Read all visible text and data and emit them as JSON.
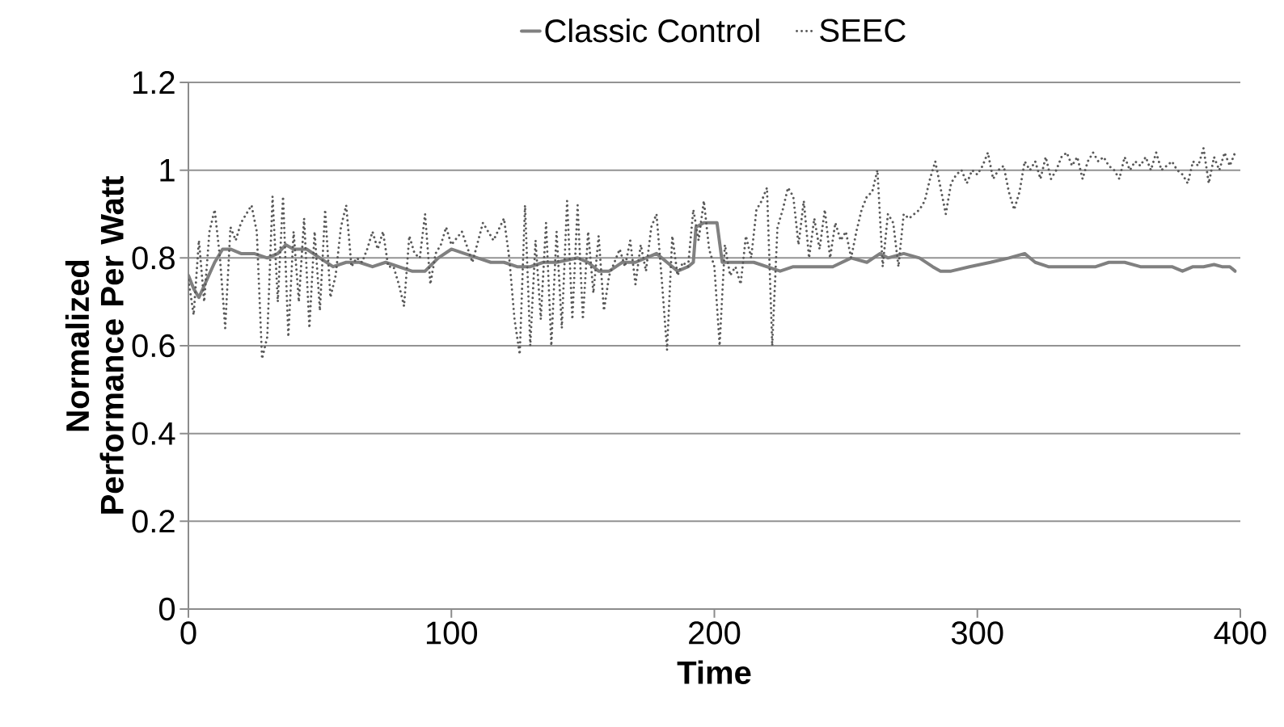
{
  "chart_data": {
    "type": "line",
    "xlabel": "Time",
    "ylabel": "Normalized Performance Per Watt",
    "xlim": [
      0,
      400
    ],
    "xticks": [
      0,
      100,
      200,
      300,
      400
    ],
    "ylim": [
      0,
      1.2
    ],
    "yticks": [
      0,
      0.2,
      0.4,
      0.6,
      0.8,
      1,
      1.2
    ],
    "grid": "y",
    "legend": "top",
    "marker": "none",
    "series": [
      {
        "name": "Classic Control",
        "color": "#808080",
        "line_style": "solid",
        "x": [
          0,
          2,
          4,
          7,
          10,
          13,
          16,
          20,
          25,
          30,
          34,
          37,
          40,
          45,
          50,
          55,
          60,
          65,
          70,
          75,
          80,
          85,
          90,
          95,
          100,
          105,
          110,
          115,
          120,
          125,
          130,
          135,
          140,
          148,
          152,
          156,
          160,
          165,
          170,
          178,
          182,
          186,
          190,
          192,
          193,
          196,
          199,
          201,
          203,
          208,
          215,
          220,
          225,
          230,
          235,
          240,
          245,
          252,
          258,
          263,
          266,
          272,
          278,
          283,
          286,
          290,
          297,
          305,
          312,
          318,
          322,
          327,
          330,
          335,
          340,
          345,
          350,
          356,
          362,
          366,
          370,
          374,
          378,
          382,
          386,
          390,
          393,
          396,
          398
        ],
        "values": [
          0.76,
          0.73,
          0.71,
          0.75,
          0.79,
          0.82,
          0.82,
          0.81,
          0.81,
          0.8,
          0.81,
          0.83,
          0.82,
          0.82,
          0.8,
          0.78,
          0.79,
          0.79,
          0.78,
          0.79,
          0.78,
          0.77,
          0.77,
          0.8,
          0.82,
          0.81,
          0.8,
          0.79,
          0.79,
          0.78,
          0.78,
          0.79,
          0.79,
          0.8,
          0.79,
          0.77,
          0.77,
          0.79,
          0.79,
          0.81,
          0.79,
          0.77,
          0.78,
          0.79,
          0.87,
          0.88,
          0.88,
          0.88,
          0.79,
          0.79,
          0.79,
          0.78,
          0.77,
          0.78,
          0.78,
          0.78,
          0.78,
          0.8,
          0.79,
          0.81,
          0.8,
          0.81,
          0.8,
          0.78,
          0.77,
          0.77,
          0.78,
          0.79,
          0.8,
          0.81,
          0.79,
          0.78,
          0.78,
          0.78,
          0.78,
          0.78,
          0.79,
          0.79,
          0.78,
          0.78,
          0.78,
          0.78,
          0.77,
          0.78,
          0.78,
          0.785,
          0.78,
          0.78,
          0.77
        ]
      },
      {
        "name": "SEEC",
        "color": "#595959",
        "line_style": "dotted",
        "x": [
          0,
          2,
          4,
          6,
          8,
          10,
          12,
          14,
          16,
          18,
          20,
          22,
          24,
          26,
          28,
          30,
          32,
          34,
          36,
          38,
          40,
          42,
          44,
          46,
          48,
          50,
          52,
          54,
          56,
          58,
          60,
          62,
          64,
          66,
          68,
          70,
          72,
          74,
          76,
          78,
          80,
          82,
          84,
          86,
          88,
          90,
          92,
          94,
          96,
          98,
          100,
          104,
          108,
          112,
          116,
          120,
          122,
          124,
          126,
          128,
          130,
          132,
          134,
          136,
          138,
          140,
          142,
          144,
          146,
          148,
          150,
          152,
          154,
          156,
          158,
          160,
          162,
          164,
          166,
          168,
          170,
          172,
          174,
          176,
          178,
          180,
          182,
          184,
          186,
          188,
          190,
          192,
          194,
          196,
          198,
          200,
          202,
          204,
          206,
          208,
          210,
          212,
          214,
          216,
          218,
          220,
          222,
          224,
          226,
          228,
          230,
          232,
          234,
          236,
          238,
          240,
          242,
          244,
          246,
          248,
          250,
          252,
          254,
          256,
          258,
          260,
          262,
          264,
          266,
          268,
          270,
          272,
          274,
          276,
          278,
          280,
          282,
          284,
          286,
          288,
          290,
          292,
          294,
          296,
          298,
          300,
          302,
          304,
          306,
          308,
          310,
          312,
          314,
          316,
          318,
          320,
          322,
          324,
          326,
          328,
          330,
          332,
          334,
          336,
          338,
          340,
          342,
          344,
          346,
          348,
          350,
          352,
          354,
          356,
          358,
          360,
          362,
          364,
          366,
          368,
          370,
          372,
          374,
          376,
          378,
          380,
          382,
          384,
          386,
          388,
          390,
          392,
          394,
          396,
          398
        ],
        "values": [
          0.75,
          0.67,
          0.84,
          0.7,
          0.86,
          0.91,
          0.8,
          0.64,
          0.87,
          0.84,
          0.88,
          0.9,
          0.92,
          0.86,
          0.57,
          0.62,
          0.94,
          0.7,
          0.94,
          0.62,
          0.86,
          0.7,
          0.89,
          0.64,
          0.86,
          0.68,
          0.91,
          0.71,
          0.76,
          0.87,
          0.92,
          0.78,
          0.8,
          0.79,
          0.82,
          0.86,
          0.82,
          0.86,
          0.78,
          0.78,
          0.74,
          0.69,
          0.85,
          0.81,
          0.8,
          0.9,
          0.74,
          0.81,
          0.83,
          0.87,
          0.83,
          0.86,
          0.79,
          0.88,
          0.84,
          0.89,
          0.8,
          0.66,
          0.58,
          0.92,
          0.6,
          0.84,
          0.66,
          0.88,
          0.6,
          0.86,
          0.64,
          0.93,
          0.66,
          0.92,
          0.66,
          0.86,
          0.72,
          0.85,
          0.68,
          0.76,
          0.79,
          0.82,
          0.78,
          0.84,
          0.74,
          0.83,
          0.77,
          0.87,
          0.9,
          0.75,
          0.59,
          0.85,
          0.76,
          0.79,
          0.78,
          0.91,
          0.84,
          0.93,
          0.82,
          0.78,
          0.6,
          0.83,
          0.76,
          0.78,
          0.74,
          0.85,
          0.8,
          0.91,
          0.93,
          0.96,
          0.6,
          0.87,
          0.91,
          0.96,
          0.94,
          0.83,
          0.93,
          0.8,
          0.89,
          0.82,
          0.91,
          0.8,
          0.88,
          0.84,
          0.86,
          0.8,
          0.86,
          0.91,
          0.94,
          0.95,
          1.0,
          0.78,
          0.9,
          0.88,
          0.78,
          0.9,
          0.89,
          0.9,
          0.91,
          0.93,
          0.98,
          1.02,
          0.96,
          0.9,
          0.97,
          0.99,
          1.0,
          0.97,
          1.0,
          0.99,
          1.01,
          1.04,
          0.98,
          1.0,
          1.01,
          0.95,
          0.91,
          0.95,
          1.02,
          1.0,
          1.02,
          0.98,
          1.03,
          0.98,
          1.0,
          1.03,
          1.04,
          1.01,
          1.03,
          0.98,
          1.02,
          1.04,
          1.02,
          1.03,
          1.01,
          1.0,
          0.98,
          1.03,
          1.0,
          1.02,
          1.01,
          1.03,
          1.0,
          1.04,
          1.0,
          1.01,
          1.02,
          1.0,
          0.99,
          0.97,
          1.02,
          1.01,
          1.05,
          0.97,
          1.03,
          1.0,
          1.04,
          1.01,
          1.04
        ]
      }
    ]
  }
}
